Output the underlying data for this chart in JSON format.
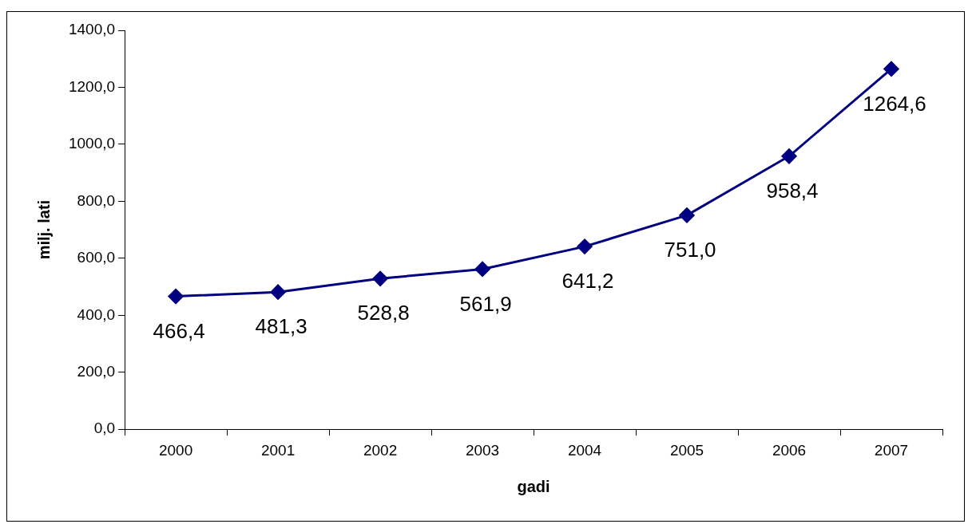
{
  "chart_data": {
    "type": "line",
    "xlabel": "gadi",
    "ylabel": "milj. lati",
    "categories": [
      "2000",
      "2001",
      "2002",
      "2003",
      "2004",
      "2005",
      "2006",
      "2007"
    ],
    "series": [
      {
        "color": "#000080",
        "values": [
          466.4,
          481.3,
          528.8,
          561.9,
          641.2,
          751.0,
          958.4,
          1264.6
        ],
        "value_labels": [
          "466,4",
          "481,3",
          "528,8",
          "561,9",
          "641,2",
          "751,0",
          "958,4",
          "1264,6"
        ]
      }
    ],
    "ylim": [
      0,
      1400
    ],
    "yticks": [
      {
        "value": 0,
        "label": "0,0"
      },
      {
        "value": 200,
        "label": "200,0"
      },
      {
        "value": 400,
        "label": "400,0"
      },
      {
        "value": 600,
        "label": "600,0"
      },
      {
        "value": 800,
        "label": "800,0"
      },
      {
        "value": 1000,
        "label": "1000,0"
      },
      {
        "value": 1200,
        "label": "1200,0"
      },
      {
        "value": 1400,
        "label": "1400,0"
      }
    ],
    "marker": "diamond",
    "line_style": "solid",
    "grid": false,
    "legend": false
  }
}
